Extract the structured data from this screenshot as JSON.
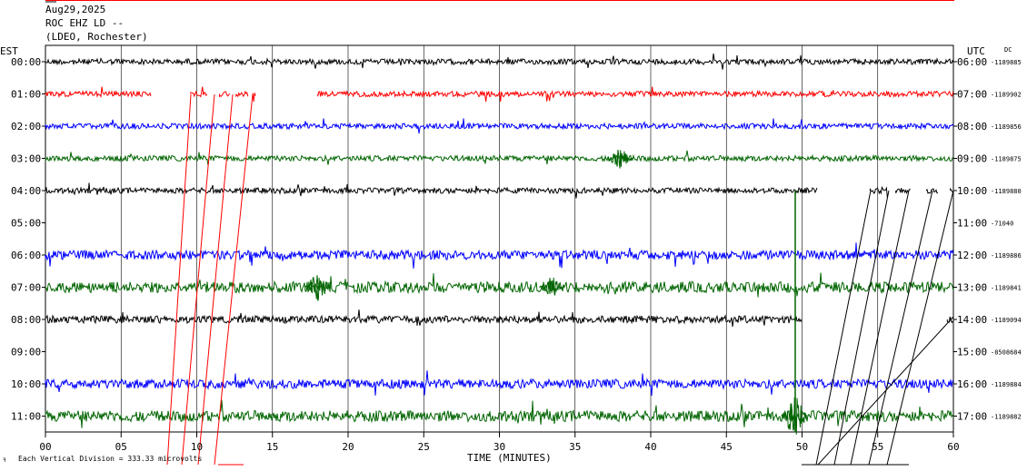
{
  "header": {
    "date": "Aug29,2025",
    "station": "ROC EHZ LD --",
    "network": "(LDEO, Rochester)"
  },
  "left_axis_title": "EST",
  "right_axis_title": "UTC",
  "dc_title": "DC",
  "x_axis_title": "TIME (MINUTES)",
  "footer_text": "Each Vertical Division =  333.33 microvolts",
  "chart_data": {
    "type": "line",
    "title": "ROC EHZ LD --",
    "xlabel": "TIME (MINUTES)",
    "xlim": [
      0,
      60
    ],
    "x_ticks": [
      "00",
      "05",
      "10",
      "15",
      "20",
      "25",
      "30",
      "35",
      "40",
      "45",
      "50",
      "55",
      "60"
    ],
    "grid": "vertical lines every 5 minutes",
    "rows": [
      {
        "est": "00:00",
        "utc": "06:00",
        "dc": "-1189885",
        "color": "#000000",
        "segments": [
          [
            0,
            60
          ]
        ],
        "amp": 3
      },
      {
        "est": "01:00",
        "utc": "07:00",
        "dc": "-1189902",
        "color": "#ff0000",
        "segments": [
          [
            0,
            7
          ],
          [
            9.6,
            10.7
          ],
          [
            11.5,
            12.2
          ],
          [
            12.6,
            13.4
          ],
          [
            13.7,
            13.9
          ],
          [
            18,
            60
          ]
        ],
        "amp": 3
      },
      {
        "est": "02:00",
        "utc": "08:00",
        "dc": "-1189856",
        "color": "#0000ff",
        "segments": [
          [
            0,
            60
          ]
        ],
        "amp": 3
      },
      {
        "est": "03:00",
        "utc": "09:00",
        "dc": "-1189875",
        "color": "#006400",
        "segments": [
          [
            0,
            60
          ]
        ],
        "amp": 3
      },
      {
        "est": "04:00",
        "utc": "10:00",
        "dc": "-1189880",
        "color": "#000000",
        "segments": [
          [
            0,
            51
          ],
          [
            54.5,
            55.7
          ],
          [
            56.2,
            57.2
          ],
          [
            58.2,
            59
          ],
          [
            59.8,
            60
          ]
        ],
        "amp": 3
      },
      {
        "est": "05:00",
        "utc": "11:00",
        "dc": "-71040",
        "color": "#ff0000",
        "segments": [],
        "amp": 0
      },
      {
        "est": "06:00",
        "utc": "12:00",
        "dc": "-1189886",
        "color": "#0000ff",
        "segments": [
          [
            0,
            60
          ]
        ],
        "amp": 5
      },
      {
        "est": "07:00",
        "utc": "13:00",
        "dc": "-1189841",
        "color": "#006400",
        "segments": [
          [
            0,
            60
          ]
        ],
        "amp": 6
      },
      {
        "est": "08:00",
        "utc": "14:00",
        "dc": "-1189094",
        "color": "#000000",
        "segments": [
          [
            0,
            50
          ],
          [
            59.6,
            60
          ]
        ],
        "amp": 4
      },
      {
        "est": "09:00",
        "utc": "15:00",
        "dc": "-8508684",
        "color": "#ff0000",
        "segments": [],
        "amp": 0
      },
      {
        "est": "10:00",
        "utc": "16:00",
        "dc": "-1189884",
        "color": "#0000ff",
        "segments": [
          [
            0,
            60
          ]
        ],
        "amp": 5
      },
      {
        "est": "11:00",
        "utc": "17:00",
        "dc": "-1189882",
        "color": "#006400",
        "segments": [
          [
            0,
            60
          ]
        ],
        "amp": 6
      }
    ],
    "events": [
      {
        "row": "03:00",
        "minute": 38,
        "amp": 12
      },
      {
        "row": "07:00",
        "minute": 18,
        "amp": 18
      },
      {
        "row": "07:00",
        "minute": 33.5,
        "amp": 12
      },
      {
        "row": "11:00",
        "minute": 49.5,
        "amp": 25
      }
    ]
  }
}
